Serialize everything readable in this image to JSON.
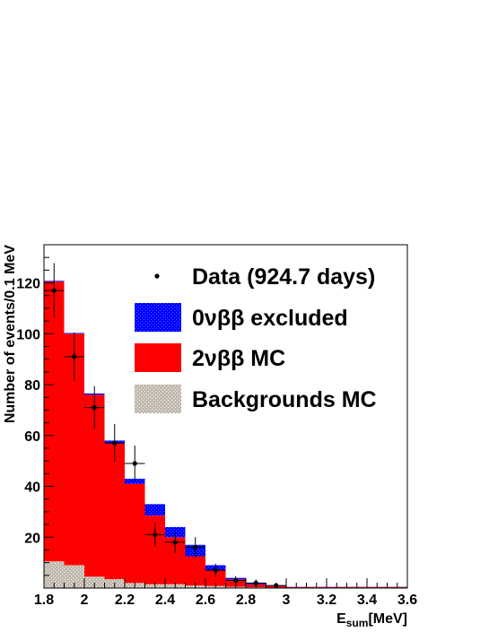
{
  "chart_data": {
    "type": "bar",
    "subtype": "stacked-histogram",
    "title": "",
    "xlabel": "E",
    "xlabel_sub": "sum",
    "xlabel_unit": "[MeV]",
    "ylabel": "Number of events/0.1 MeV",
    "xlim": [
      1.8,
      3.6
    ],
    "ylim": [
      0,
      135
    ],
    "bin_width": 0.1,
    "bin_edges": [
      1.8,
      1.9,
      2.0,
      2.1,
      2.2,
      2.3,
      2.4,
      2.5,
      2.6,
      2.7,
      2.8,
      2.9,
      3.0,
      3.1,
      3.2,
      3.3,
      3.4,
      3.5,
      3.6
    ],
    "x_ticks": [
      "1.8",
      "2",
      "2.2",
      "2.4",
      "2.6",
      "2.8",
      "3",
      "3.2",
      "3.4",
      "3.6"
    ],
    "x_tick_values": [
      1.8,
      2.0,
      2.2,
      2.4,
      2.6,
      2.8,
      3.0,
      3.2,
      3.4,
      3.6
    ],
    "y_ticks": [
      "20",
      "40",
      "60",
      "80",
      "100",
      "120"
    ],
    "y_tick_values": [
      20,
      40,
      60,
      80,
      100,
      120
    ],
    "grid": false,
    "legend_position": "top-right",
    "series": [
      {
        "name": "Backgrounds MC",
        "kind": "stack",
        "color": "#c0b8ac",
        "values": [
          10.5,
          9.0,
          4.5,
          3.5,
          2.0,
          1.5,
          1.5,
          1.0,
          0.8,
          0.5,
          0.3,
          0.2,
          0.1,
          0.1,
          0.1,
          0.1,
          0.1,
          0.1
        ]
      },
      {
        "name": "2νββ MC",
        "kind": "stack",
        "color": "#ff0000",
        "values": [
          110.0,
          91.0,
          71.5,
          53.5,
          39.0,
          27.0,
          18.5,
          11.5,
          6.2,
          2.9,
          1.2,
          0.6,
          0.3,
          0.3,
          0.3,
          0.3,
          0.3,
          0.3
        ]
      },
      {
        "name": "0νββ excluded",
        "kind": "stack",
        "color": "#0000ff",
        "values": [
          0.3,
          0.3,
          0.5,
          1.0,
          2.0,
          4.5,
          4.0,
          4.5,
          2.0,
          0.6,
          0.5,
          0.2,
          0.1,
          0.1,
          0.1,
          0.1,
          0.1,
          0.1
        ]
      },
      {
        "name": "Data (924.7 days)",
        "kind": "points",
        "color": "#000000",
        "x": [
          1.85,
          1.95,
          2.05,
          2.15,
          2.25,
          2.35,
          2.45,
          2.55,
          2.65,
          2.75,
          2.85,
          2.95
        ],
        "y": [
          117,
          91,
          71,
          57,
          49,
          21,
          18,
          16,
          7,
          3,
          2,
          1
        ],
        "yerr": [
          10.8,
          9.5,
          8.4,
          7.5,
          7.0,
          4.6,
          4.2,
          4.0,
          2.6,
          1.7,
          1.4,
          1.0
        ]
      }
    ],
    "legend": [
      {
        "label": "Data (924.7 days)",
        "symbol": "marker"
      },
      {
        "label_parts": [
          "0",
          "ν",
          "ββ",
          " excluded"
        ],
        "symbol": "box",
        "color": "#0000ff"
      },
      {
        "label_parts": [
          "2",
          "ν",
          "ββ",
          " MC"
        ],
        "symbol": "box",
        "color": "#ff0000"
      },
      {
        "label": "Backgrounds MC",
        "symbol": "box",
        "color": "#c0b8ac"
      }
    ]
  }
}
